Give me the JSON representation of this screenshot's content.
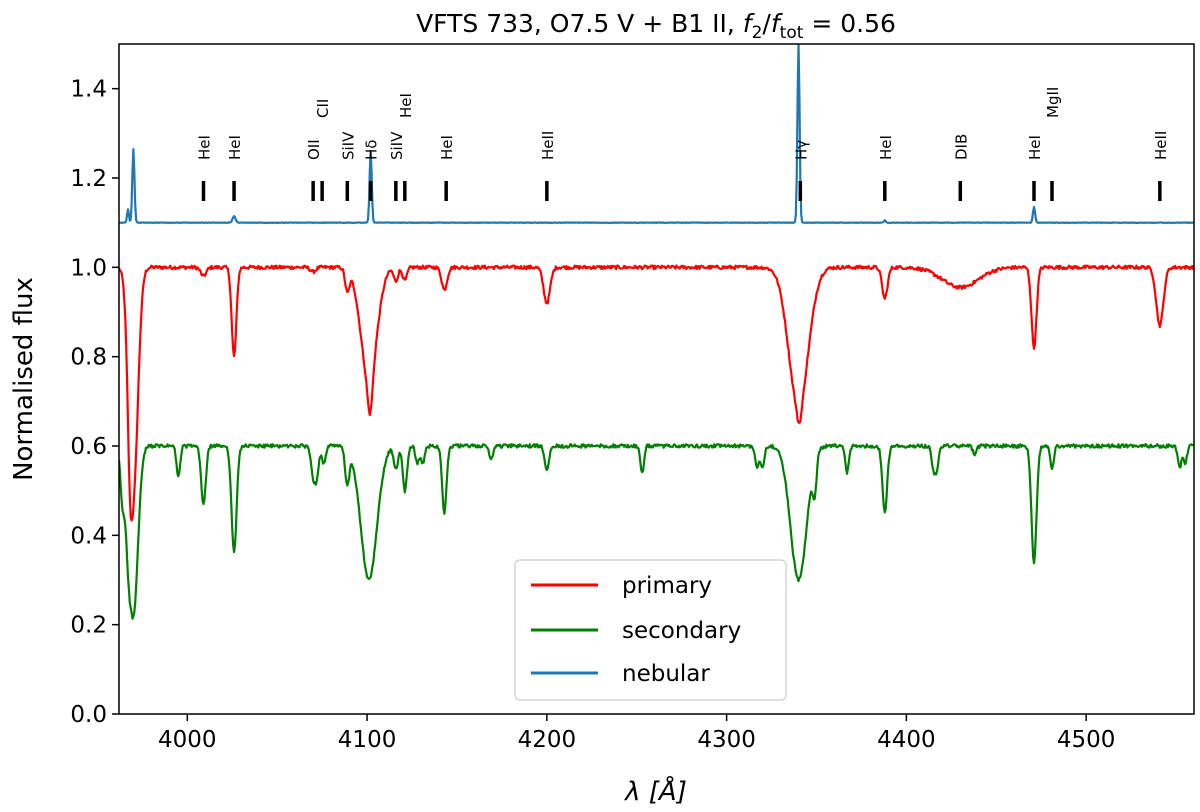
{
  "chart_data": {
    "type": "line",
    "title": {
      "main": "VFTS 733, O7.5 V + B1 II, ",
      "f": "f",
      "sub2": "2",
      "slash": "/",
      "sub_tot": "tot",
      "equals": " = 0.56"
    },
    "xlabel": {
      "lambda": "λ",
      "unit": " [Å]"
    },
    "ylabel": "Normalised flux",
    "xlim": [
      3962,
      4560
    ],
    "ylim": [
      0.0,
      1.5
    ],
    "xticks": [
      4000,
      4100,
      4200,
      4300,
      4400,
      4500
    ],
    "yticks": [
      0.0,
      0.2,
      0.4,
      0.6,
      0.8,
      1.0,
      1.2,
      1.4
    ],
    "legend": {
      "position": "lower-center"
    },
    "colors": {
      "primary": "#ff0000",
      "secondary": "#008000",
      "nebular": "#1f77b4"
    },
    "series": [
      {
        "name": "primary",
        "continuum": 1.0,
        "noise": 0.004,
        "lines": [
          [
            3968,
            0.15,
            1.2
          ],
          [
            3970,
            0.5,
            2.5
          ],
          [
            4009,
            0.02,
            1.5
          ],
          [
            4026,
            0.2,
            1.3
          ],
          [
            4070,
            0.01,
            1.5
          ],
          [
            4089,
            0.05,
            1.2
          ],
          [
            4101,
            0.25,
            4.5
          ],
          [
            4101.7,
            0.08,
            1.3
          ],
          [
            4116,
            0.03,
            1.2
          ],
          [
            4121,
            0.03,
            1.2
          ],
          [
            4143,
            0.05,
            1.5
          ],
          [
            4200,
            0.08,
            1.8
          ],
          [
            4340,
            0.31,
            5.5
          ],
          [
            4340.5,
            0.04,
            1.3
          ],
          [
            4388,
            0.07,
            1.5
          ],
          [
            4430,
            0.045,
            10
          ],
          [
            4471,
            0.18,
            1.4
          ],
          [
            4541,
            0.13,
            2.0
          ]
        ]
      },
      {
        "name": "secondary",
        "continuum": 0.6,
        "noise": 0.004,
        "lines": [
          [
            3964,
            0.12,
            1.2
          ],
          [
            3967,
            0.1,
            1.2
          ],
          [
            3970,
            0.38,
            2.5
          ],
          [
            3995,
            0.07,
            1.0
          ],
          [
            4009,
            0.13,
            1.3
          ],
          [
            4026,
            0.24,
            1.4
          ],
          [
            4070,
            0.06,
            1.2
          ],
          [
            4072,
            0.06,
            1.2
          ],
          [
            4076,
            0.04,
            1.0
          ],
          [
            4089,
            0.08,
            1.2
          ],
          [
            4101,
            0.3,
            4.5
          ],
          [
            4116,
            0.05,
            1.2
          ],
          [
            4121,
            0.1,
            1.2
          ],
          [
            4128,
            0.04,
            1.0
          ],
          [
            4131,
            0.04,
            1.0
          ],
          [
            4143,
            0.15,
            1.2
          ],
          [
            4169,
            0.03,
            1.0
          ],
          [
            4200,
            0.05,
            1.2
          ],
          [
            4253,
            0.06,
            1.0
          ],
          [
            4317,
            0.05,
            1.0
          ],
          [
            4320,
            0.05,
            1.0
          ],
          [
            4340,
            0.3,
            4.5
          ],
          [
            4349,
            0.08,
            1.0
          ],
          [
            4367,
            0.06,
            1.0
          ],
          [
            4388,
            0.15,
            1.3
          ],
          [
            4415,
            0.05,
            1.0
          ],
          [
            4417,
            0.05,
            1.0
          ],
          [
            4438,
            0.02,
            1.0
          ],
          [
            4471,
            0.26,
            1.4
          ],
          [
            4481,
            0.05,
            1.0
          ],
          [
            4552,
            0.05,
            1.0
          ],
          [
            4555,
            0.04,
            1.0
          ]
        ]
      },
      {
        "name": "nebular",
        "continuum": 1.1,
        "noise": 0.0005,
        "lines": [
          [
            3967,
            0.03,
            0.5
          ],
          [
            3970,
            0.165,
            0.6
          ],
          [
            4026,
            0.015,
            0.8
          ],
          [
            4102,
            0.16,
            0.6
          ],
          [
            4340,
            0.4,
            0.6
          ],
          [
            4388,
            0.005,
            0.5
          ],
          [
            4471,
            0.035,
            0.6
          ]
        ]
      }
    ],
    "line_ids": [
      {
        "label": "HeI",
        "wavelength": 4009,
        "row": 1
      },
      {
        "label": "HeI",
        "wavelength": 4026,
        "row": 1
      },
      {
        "label": "OII",
        "wavelength": 4070,
        "row": 1
      },
      {
        "label": "CII",
        "wavelength": 4075,
        "row": 2
      },
      {
        "label": "SiIV",
        "wavelength": 4089,
        "row": 1
      },
      {
        "label": "Hδ",
        "wavelength": 4102,
        "row": 1
      },
      {
        "label": "SiIV",
        "wavelength": 4116,
        "row": 1
      },
      {
        "label": "HeI",
        "wavelength": 4121,
        "row": 2
      },
      {
        "label": "HeI",
        "wavelength": 4144,
        "row": 1
      },
      {
        "label": "HeII",
        "wavelength": 4200,
        "row": 1
      },
      {
        "label": "Hγ",
        "wavelength": 4341,
        "row": 1
      },
      {
        "label": "HeI",
        "wavelength": 4388,
        "row": 1
      },
      {
        "label": "DIB",
        "wavelength": 4430,
        "row": 1
      },
      {
        "label": "HeI",
        "wavelength": 4471,
        "row": 1
      },
      {
        "label": "MgII",
        "wavelength": 4481,
        "row": 2
      },
      {
        "label": "HeII",
        "wavelength": 4541,
        "row": 1
      }
    ]
  }
}
